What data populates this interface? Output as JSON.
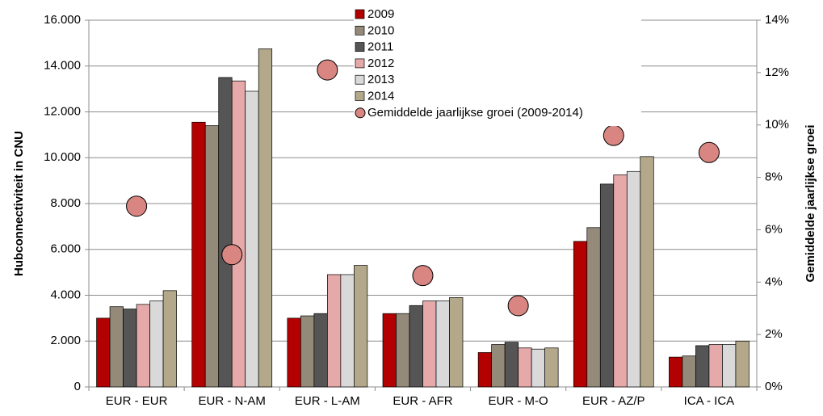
{
  "chart_data": {
    "type": "bar",
    "categories": [
      "EUR - EUR",
      "EUR - N-AM",
      "EUR - L-AM",
      "EUR - AFR",
      "EUR - M-O",
      "EUR - AZ/P",
      "ICA - ICA"
    ],
    "y_label": "Hubconnectiviteit in CNU",
    "y2_label": "Gemiddelde jaarlijkse groei",
    "ylim": [
      0,
      16000
    ],
    "yticks": [
      0,
      {
        "value": 2000,
        "label": "2.000"
      },
      {
        "value": 4000,
        "label": "4.000"
      },
      {
        "value": 6000,
        "label": "6.000"
      },
      {
        "value": 8000,
        "label": "8.000"
      },
      {
        "value": 10000,
        "label": "10.000"
      },
      {
        "value": 12000,
        "label": "12.000"
      },
      {
        "value": 14000,
        "label": "14.000"
      },
      {
        "value": 16000,
        "label": "16.000"
      }
    ],
    "y2lim": [
      0,
      14
    ],
    "y2ticks": [
      {
        "value": 0,
        "label": "0%"
      },
      {
        "value": 2,
        "label": "2%"
      },
      {
        "value": 4,
        "label": "4%"
      },
      {
        "value": 6,
        "label": "6%"
      },
      {
        "value": 8,
        "label": "8%"
      },
      {
        "value": 10,
        "label": "10%"
      },
      {
        "value": 12,
        "label": "12%"
      },
      {
        "value": 14,
        "label": "14%"
      }
    ],
    "grid": true,
    "legend": "top",
    "series": [
      {
        "name": "2009",
        "color": "#b30000",
        "values": [
          3000,
          11550,
          3000,
          3200,
          1500,
          6350,
          1300
        ]
      },
      {
        "name": "2010",
        "color": "#948a7a",
        "values": [
          3500,
          11400,
          3100,
          3200,
          1850,
          6950,
          1350
        ]
      },
      {
        "name": "2011",
        "color": "#555555",
        "values": [
          3400,
          13500,
          3200,
          3550,
          1950,
          8850,
          1800
        ]
      },
      {
        "name": "2012",
        "color": "#e6a9a9",
        "values": [
          3600,
          13350,
          4900,
          3750,
          1700,
          9250,
          1850
        ]
      },
      {
        "name": "2013",
        "color": "#d9d9d9",
        "values": [
          3750,
          12900,
          4900,
          3750,
          1650,
          9400,
          1850
        ]
      },
      {
        "name": "2014",
        "color": "#b3a98a",
        "values": [
          4200,
          14750,
          5300,
          3900,
          1700,
          10050,
          2000
        ]
      },
      {
        "name": "Gemiddelde jaarlijkse groei (2009-2014)",
        "color": "#d98682",
        "type": "scatter",
        "axis": "y2",
        "values": [
          6.9,
          5.05,
          12.1,
          4.25,
          3.1,
          9.6,
          8.95
        ]
      }
    ]
  }
}
